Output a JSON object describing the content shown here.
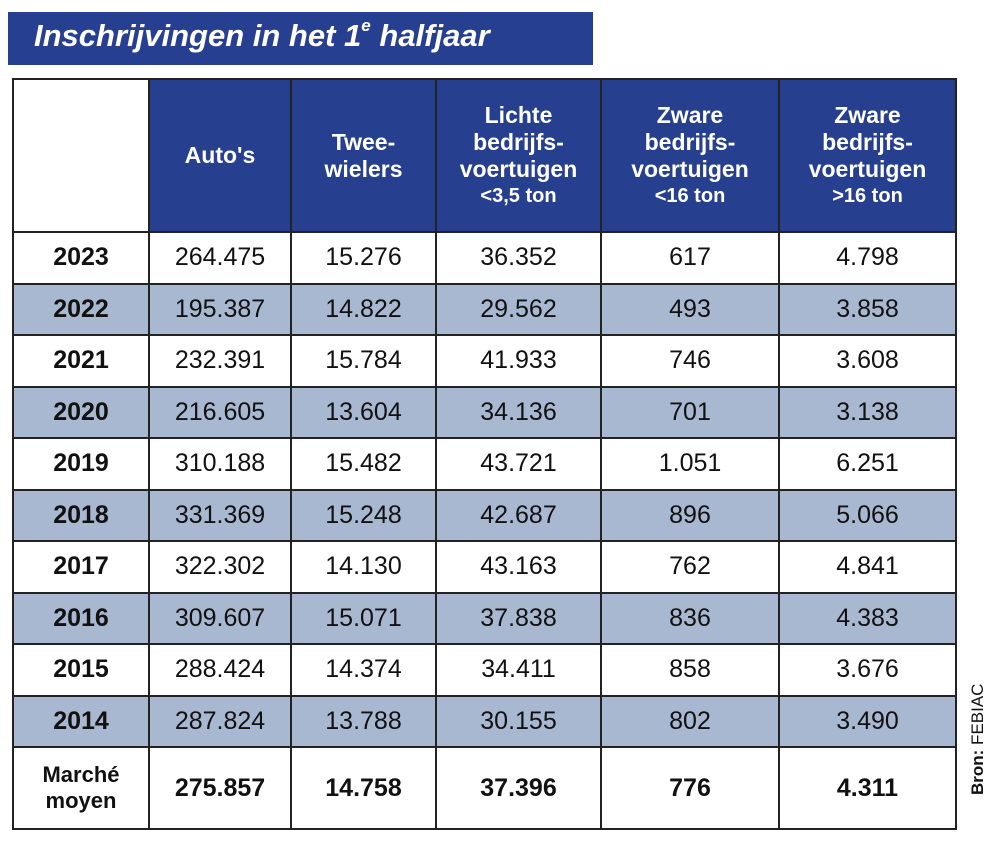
{
  "title": {
    "main": "Inschrijvingen in het 1",
    "sup": "e",
    "end": " halfjaar"
  },
  "colors": {
    "header_blue": "#263f8f",
    "alt_row": "#a9b8d1"
  },
  "source": {
    "label": "Bron:",
    "value": "FEBIAC"
  },
  "chart_data": {
    "type": "table",
    "columns": [
      {
        "lines": [
          "Auto's"
        ],
        "sub": ""
      },
      {
        "lines": [
          "Twee-",
          "wielers"
        ],
        "sub": ""
      },
      {
        "lines": [
          "Lichte",
          "bedrijfs-",
          "voertuigen"
        ],
        "sub": "<3,5 ton"
      },
      {
        "lines": [
          "Zware",
          "bedrijfs-",
          "voertuigen"
        ],
        "sub": "<16 ton"
      },
      {
        "lines": [
          "Zware",
          "bedrijfs-",
          "voertuigen"
        ],
        "sub": ">16 ton"
      }
    ],
    "rows": [
      {
        "label": "2023",
        "values": [
          "264.475",
          "15.276",
          "36.352",
          "617",
          "4.798"
        ]
      },
      {
        "label": "2022",
        "values": [
          "195.387",
          "14.822",
          "29.562",
          "493",
          "3.858"
        ]
      },
      {
        "label": "2021",
        "values": [
          "232.391",
          "15.784",
          "41.933",
          "746",
          "3.608"
        ]
      },
      {
        "label": "2020",
        "values": [
          "216.605",
          "13.604",
          "34.136",
          "701",
          "3.138"
        ]
      },
      {
        "label": "2019",
        "values": [
          "310.188",
          "15.482",
          "43.721",
          "1.051",
          "6.251"
        ]
      },
      {
        "label": "2018",
        "values": [
          "331.369",
          "15.248",
          "42.687",
          "896",
          "5.066"
        ]
      },
      {
        "label": "2017",
        "values": [
          "322.302",
          "14.130",
          "43.163",
          "762",
          "4.841"
        ]
      },
      {
        "label": "2016",
        "values": [
          "309.607",
          "15.071",
          "37.838",
          "836",
          "4.383"
        ]
      },
      {
        "label": "2015",
        "values": [
          "288.424",
          "14.374",
          "34.411",
          "858",
          "3.676"
        ]
      },
      {
        "label": "2014",
        "values": [
          "287.824",
          "13.788",
          "30.155",
          "802",
          "3.490"
        ]
      }
    ],
    "average": {
      "label_lines": [
        "Marché",
        "moyen"
      ],
      "values": [
        "275.857",
        "14.758",
        "37.396",
        "776",
        "4.311"
      ]
    }
  }
}
